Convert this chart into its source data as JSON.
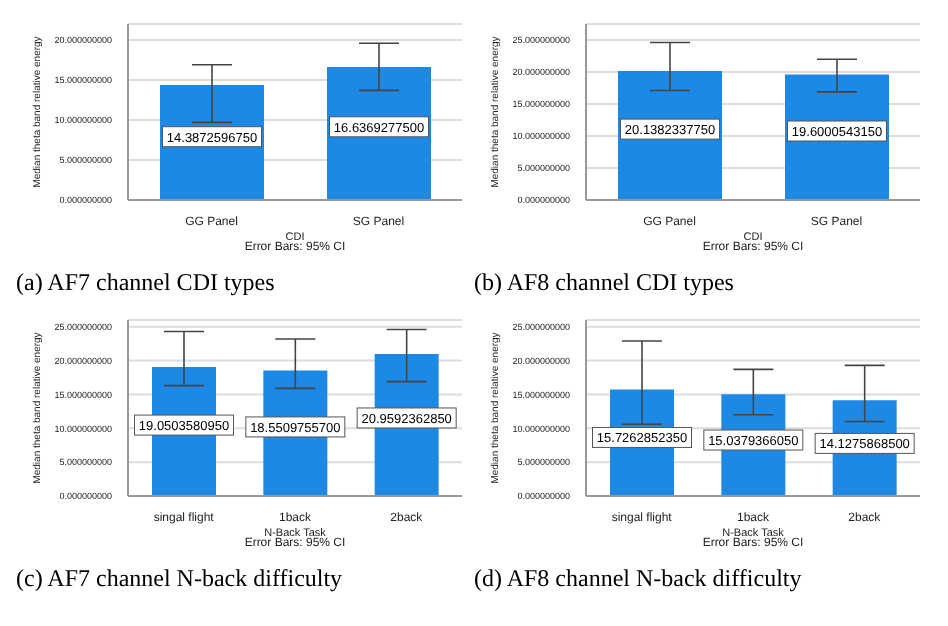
{
  "chart_data": [
    {
      "type": "bar",
      "title": "(a) AF7 channel CDI types",
      "xlabel": "CDI",
      "ylabel": "Median theta band relative energy",
      "annotations": [
        "Error Bars: 95% CI"
      ],
      "categories": [
        "GG Panel",
        "SG Panel"
      ],
      "values": [
        14.387259675,
        16.63692775
      ],
      "value_labels": [
        "14.3872596750",
        "16.6369277500"
      ],
      "errors": [
        [
          9.7,
          16.9
        ],
        [
          13.7,
          19.6
        ]
      ],
      "color": "#1e88e5",
      "ylim": [
        0,
        22
      ],
      "yticks": [
        {
          "value": 0,
          "label": "0.000000000"
        },
        {
          "value": 5,
          "label": "5.000000000"
        },
        {
          "value": 10,
          "label": "10.000000000"
        },
        {
          "value": 15,
          "label": "15.000000000"
        },
        {
          "value": 20,
          "label": "20.000000000"
        }
      ],
      "grid": "y"
    },
    {
      "type": "bar",
      "title": "(b) AF8 channel CDI types",
      "xlabel": "CDI",
      "ylabel": "Median theta band relative energy",
      "annotations": [
        "Error Bars: 95% CI"
      ],
      "categories": [
        "GG Panel",
        "SG Panel"
      ],
      "values": [
        20.138233775,
        19.600054315
      ],
      "value_labels": [
        "20.1382337750",
        "19.6000543150"
      ],
      "errors": [
        [
          17.1,
          24.6
        ],
        [
          16.9,
          22.0
        ]
      ],
      "color": "#1e88e5",
      "ylim": [
        0,
        27.5
      ],
      "yticks": [
        {
          "value": 0,
          "label": "0.000000000"
        },
        {
          "value": 5,
          "label": "5.000000000"
        },
        {
          "value": 10,
          "label": "10.000000000"
        },
        {
          "value": 15,
          "label": "15.000000000"
        },
        {
          "value": 20,
          "label": "20.000000000"
        },
        {
          "value": 25,
          "label": "25.000000000"
        }
      ],
      "grid": "y"
    },
    {
      "type": "bar",
      "title": "(c) AF7 channel N-back difficulty",
      "xlabel": "N-Back Task",
      "ylabel": "Median theta band relative energy",
      "annotations": [
        "Error Bars: 95% CI"
      ],
      "categories": [
        "singal flight",
        "1back",
        "2back"
      ],
      "values": [
        19.050358095,
        18.55097557,
        20.959236285
      ],
      "value_labels": [
        "19.0503580950",
        "18.5509755700",
        "20.9592362850"
      ],
      "errors": [
        [
          16.3,
          24.3
        ],
        [
          15.9,
          23.2
        ],
        [
          16.9,
          24.6
        ]
      ],
      "color": "#1e88e5",
      "ylim": [
        0,
        26
      ],
      "yticks": [
        {
          "value": 0,
          "label": "0.000000000"
        },
        {
          "value": 5,
          "label": "5.000000000"
        },
        {
          "value": 10,
          "label": "10.000000000"
        },
        {
          "value": 15,
          "label": "15.000000000"
        },
        {
          "value": 20,
          "label": "20.000000000"
        },
        {
          "value": 25,
          "label": "25.000000000"
        }
      ],
      "grid": "y"
    },
    {
      "type": "bar",
      "title": "(d) AF8 channel N-back difficulty",
      "xlabel": "N-Back Task",
      "ylabel": "Median theta band relative energy",
      "annotations": [
        "Error Bars: 95% CI"
      ],
      "categories": [
        "singal flight",
        "1back",
        "2back"
      ],
      "values": [
        15.726285235,
        15.037936605,
        14.12758685
      ],
      "value_labels": [
        "15.7262852350",
        "15.0379366050",
        "14.1275868500"
      ],
      "errors": [
        [
          10.6,
          22.9
        ],
        [
          12.0,
          18.7
        ],
        [
          11.0,
          19.3
        ]
      ],
      "color": "#1e88e5",
      "ylim": [
        0,
        26
      ],
      "yticks": [
        {
          "value": 0,
          "label": "0.000000000"
        },
        {
          "value": 5,
          "label": "5.000000000"
        },
        {
          "value": 10,
          "label": "10.000000000"
        },
        {
          "value": 15,
          "label": "15.000000000"
        },
        {
          "value": 20,
          "label": "20.000000000"
        },
        {
          "value": 25,
          "label": "25.000000000"
        }
      ],
      "grid": "y"
    }
  ]
}
